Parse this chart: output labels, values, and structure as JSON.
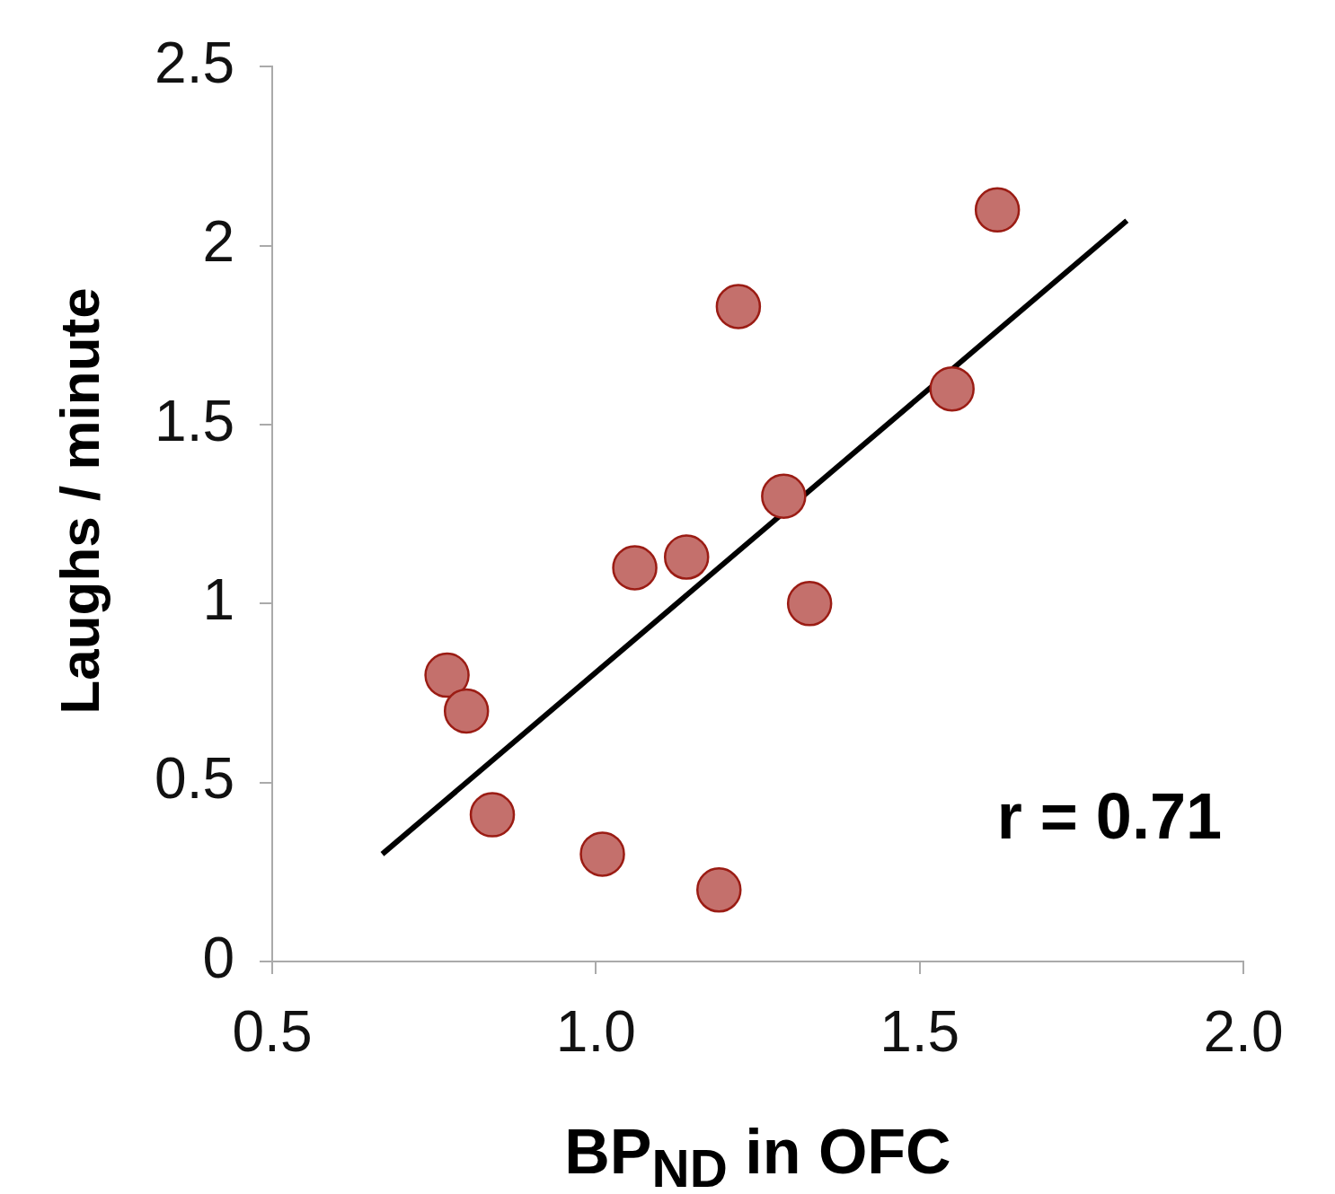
{
  "chart_data": {
    "type": "scatter",
    "xlabel": "BP$_{ND}$ in OFC",
    "ylabel": "Laughs / minute",
    "grid": false,
    "legend": false,
    "xlim": [
      0.5,
      2.0
    ],
    "xticks": [
      {
        "value": 0.5,
        "label": "0.5"
      },
      {
        "value": 1.0,
        "label": "1.0"
      },
      {
        "value": 1.5,
        "label": "1.5"
      },
      {
        "value": 2.0,
        "label": "2.0"
      }
    ],
    "ylim": [
      0,
      2.5
    ],
    "yticks": [
      0,
      0.5,
      1,
      1.5,
      2,
      2.5
    ],
    "annotations": [
      "r = 0.71"
    ],
    "series": [
      {
        "marker": "circle",
        "color": "#c4706c",
        "x": [
          1.62,
          1.22,
          1.55,
          1.29,
          1.14,
          1.06,
          1.33,
          0.77,
          0.8,
          0.84,
          1.01,
          1.19
        ],
        "values": [
          2.1,
          1.83,
          1.6,
          1.3,
          1.13,
          1.1,
          1.0,
          0.8,
          0.7,
          0.41,
          0.3,
          0.2
        ]
      },
      {
        "type": "line",
        "marker": "none",
        "color": "#000000",
        "line_style": "solid",
        "x": [
          0.67,
          1.82
        ],
        "values": [
          0.3,
          2.07
        ]
      }
    ]
  }
}
